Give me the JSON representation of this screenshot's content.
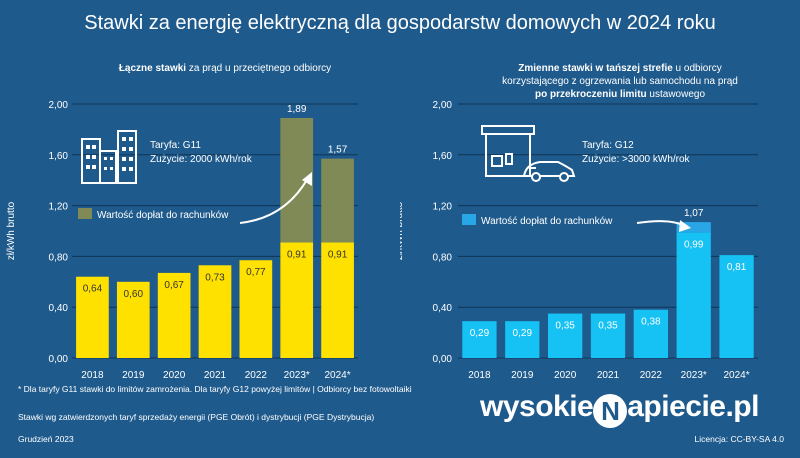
{
  "title": "Stawki za energię elektryczną dla gospodarstw domowych w 2024 roku",
  "left_subtitle": {
    "bold": "Łączne stawki",
    "rest": " za prąd u przeciętnego odbiorcy"
  },
  "right_subtitle": {
    "line1_bold": "Zmienne stawki w tańszej strefie",
    "line1_rest": " u odbiorcy",
    "line2": "korzystającego z ogrzewania lub samochodu na prąd",
    "line3_bold": "po przekroczeniu limitu",
    "line3_rest": " ustawowego"
  },
  "footnotes": {
    "f1": "* Dla taryfy G11 stawki do limitów zamrożenia. Dla taryfy G12 powyżej limitów  |  Odbiorcy bez fotowoltaiki",
    "f2": "Stawki wg zatwierdzonych taryf sprzedaży energii (PGE Obrót) i dystrybucji (PGE Dystrybucja)",
    "f3": "Grudzień  2023"
  },
  "license": "Licencja: CC-BY-SA 4.0",
  "logo": {
    "left": "wysokie",
    "n": "N",
    "right": "apiecie.pl"
  },
  "colors": {
    "background": "#1f5a8c",
    "yellow": "#ffe100",
    "olive": "#7f8a56",
    "cyan": "#16c1f3",
    "cyan_top": "#29a6e6",
    "grid": "#0e3556"
  },
  "icons": [
    "buildings-icon",
    "house-car-icon",
    "arrow-icon"
  ],
  "chart_data": [
    {
      "type": "bar",
      "ylabel": "zł/kWh  brutto",
      "ylim": [
        0,
        2.0
      ],
      "yticks": [
        "0,00",
        "0,40",
        "0,80",
        "1,20",
        "1,60",
        "2,00"
      ],
      "categories": [
        "2018",
        "2019",
        "2020",
        "2021",
        "2022",
        "2023*",
        "2024*"
      ],
      "series": [
        {
          "name": "",
          "values": [
            0.64,
            0.6,
            0.67,
            0.73,
            0.77,
            0.91,
            0.91
          ]
        },
        {
          "name": "Wartość dopłat do rachunków",
          "values": [
            0,
            0,
            0,
            0,
            0,
            0.98,
            0.66
          ]
        }
      ],
      "labels": [
        "0,64",
        "0,60",
        "0,67",
        "0,73",
        "0,77",
        "0,91",
        "0,91"
      ],
      "totals": [
        null,
        null,
        null,
        null,
        null,
        "1,89",
        "1,57"
      ],
      "annotation": {
        "line1": "Taryfa: G11",
        "line2": "Zużycie: 2000 kWh/rok"
      },
      "legend": "Wartość dopłat do rachunków",
      "grid": true
    },
    {
      "type": "bar",
      "ylabel": "zł/kWh  brutto",
      "ylim": [
        0,
        2.0
      ],
      "yticks": [
        "0,00",
        "0,40",
        "0,80",
        "1,20",
        "1,60",
        "2,00"
      ],
      "categories": [
        "2018",
        "2019",
        "2020",
        "2021",
        "2022",
        "2023*",
        "2024*"
      ],
      "series": [
        {
          "name": "",
          "values": [
            0.29,
            0.29,
            0.35,
            0.35,
            0.38,
            0.99,
            0.81
          ]
        },
        {
          "name": "Wartość dopłat do rachunków",
          "values": [
            0,
            0,
            0,
            0,
            0,
            0.08,
            0
          ]
        }
      ],
      "labels": [
        "0,29",
        "0,29",
        "0,35",
        "0,35",
        "0,38",
        "0,99",
        "0,81"
      ],
      "totals": [
        null,
        null,
        null,
        null,
        null,
        "1,07",
        null
      ],
      "annotation": {
        "line1": "Taryfa: G12",
        "line2": "Zużycie: >3000 kWh/rok"
      },
      "legend": "Wartość dopłat do rachunków",
      "grid": true
    }
  ]
}
